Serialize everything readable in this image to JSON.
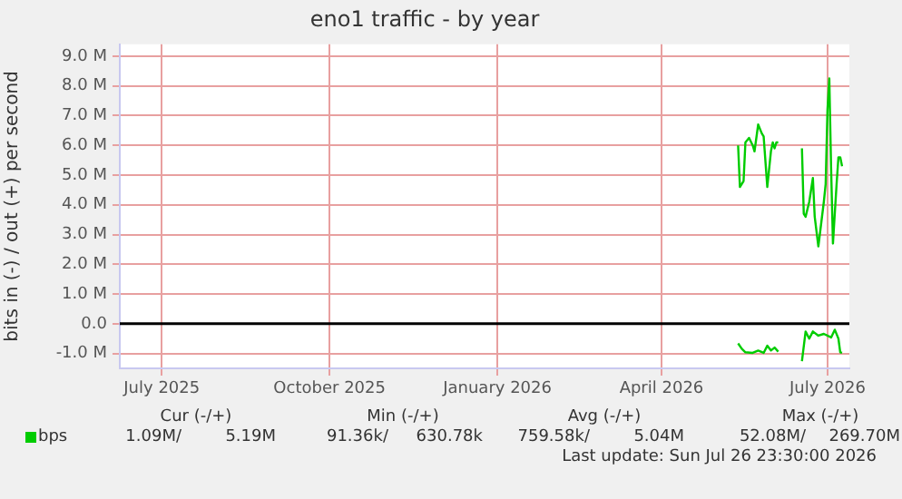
{
  "chart_data": {
    "type": "line",
    "title": "eno1 traffic - by year",
    "ylabel": "bits in (-) / out (+) per second",
    "xlim": [
      "2025-06-08",
      "2026-07-13"
    ],
    "xticks": [
      {
        "value": "2025-07-01",
        "label": "July 2025"
      },
      {
        "value": "2025-10-01",
        "label": "October 2025"
      },
      {
        "value": "2026-01-01",
        "label": "January 2026"
      },
      {
        "value": "2026-04-01",
        "label": "April 2026"
      },
      {
        "value": "2026-07-01",
        "label": "July 2026"
      }
    ],
    "ylim": [
      -1.5,
      9.4
    ],
    "yticks": [
      {
        "value": -1,
        "label": "-1.0 M"
      },
      {
        "value": 0,
        "label": "0.0"
      },
      {
        "value": 1,
        "label": "1.0 M"
      },
      {
        "value": 2,
        "label": "2.0 M"
      },
      {
        "value": 3,
        "label": "3.0 M"
      },
      {
        "value": 4,
        "label": "4.0 M"
      },
      {
        "value": 5,
        "label": "5.0 M"
      },
      {
        "value": 6,
        "label": "6.0 M"
      },
      {
        "value": 7,
        "label": "7.0 M"
      },
      {
        "value": 8,
        "label": "8.0 M"
      },
      {
        "value": 9,
        "label": "9.0 M"
      }
    ],
    "grid": true,
    "legend": "bottom left",
    "ref_lines": [
      {
        "axis": "y",
        "value": 0,
        "color": "#000000"
      }
    ],
    "series": [
      {
        "name": "bps",
        "color": "#00cc00",
        "x": [
          "2026-05-13",
          "2026-05-14",
          "2026-05-16",
          "2026-05-17",
          "2026-05-19",
          "2026-05-21",
          "2026-05-22",
          "2026-05-24",
          "2026-05-26",
          "2026-05-27",
          "2026-05-29",
          "2026-05-31",
          "2026-06-01",
          "2026-06-02",
          "2026-06-03",
          "2026-06-04",
          "2026-06-10",
          "2026-06-17",
          "2026-06-18",
          "2026-06-19",
          "2026-06-21",
          "2026-06-23",
          "2026-06-24",
          "2026-06-26",
          "2026-06-27",
          "2026-06-29",
          "2026-06-30",
          "2026-07-01",
          "2026-07-02",
          "2026-07-03",
          "2026-07-04",
          "2026-07-06",
          "2026-07-07",
          "2026-07-08",
          "2026-07-09"
        ],
        "values": [
          6.0,
          4.6,
          4.8,
          6.1,
          6.25,
          6.0,
          5.8,
          6.7,
          6.4,
          6.3,
          4.6,
          5.8,
          6.1,
          5.9,
          6.1,
          6.1,
          null,
          5.9,
          3.7,
          3.6,
          4.1,
          4.9,
          3.6,
          2.6,
          3.1,
          4.1,
          4.7,
          7.2,
          8.25,
          5.2,
          2.7,
          4.7,
          5.6,
          5.6,
          5.3
        ]
      },
      {
        "color": "#00cc00",
        "x": [
          "2026-05-13",
          "2026-05-15",
          "2026-05-17",
          "2026-05-21",
          "2026-05-24",
          "2026-05-27",
          "2026-05-29",
          "2026-05-31",
          "2026-06-02",
          "2026-06-04",
          "2026-06-10",
          "2026-06-17",
          "2026-06-19",
          "2026-06-21",
          "2026-06-23",
          "2026-06-26",
          "2026-06-29",
          "2026-07-03",
          "2026-07-05",
          "2026-07-07",
          "2026-07-08",
          "2026-07-09"
        ],
        "values": [
          -0.66,
          -0.84,
          -0.96,
          -0.98,
          -0.9,
          -0.98,
          -0.74,
          -0.9,
          -0.8,
          -0.94,
          null,
          -1.26,
          -0.26,
          -0.5,
          -0.26,
          -0.4,
          -0.34,
          -0.46,
          -0.2,
          -0.5,
          -0.96,
          -0.98
        ]
      }
    ],
    "annotations": [
      "Cur (-/+)",
      "Min (-/+)",
      "Avg (-/+)",
      "Max (-/+)",
      "1.09M/",
      "5.19M",
      "91.36k/",
      "630.78k",
      "759.58k/",
      "5.04M",
      "52.08M/",
      "269.70M",
      "Last update: Sun Jul 26 23:30:00 2026"
    ]
  }
}
